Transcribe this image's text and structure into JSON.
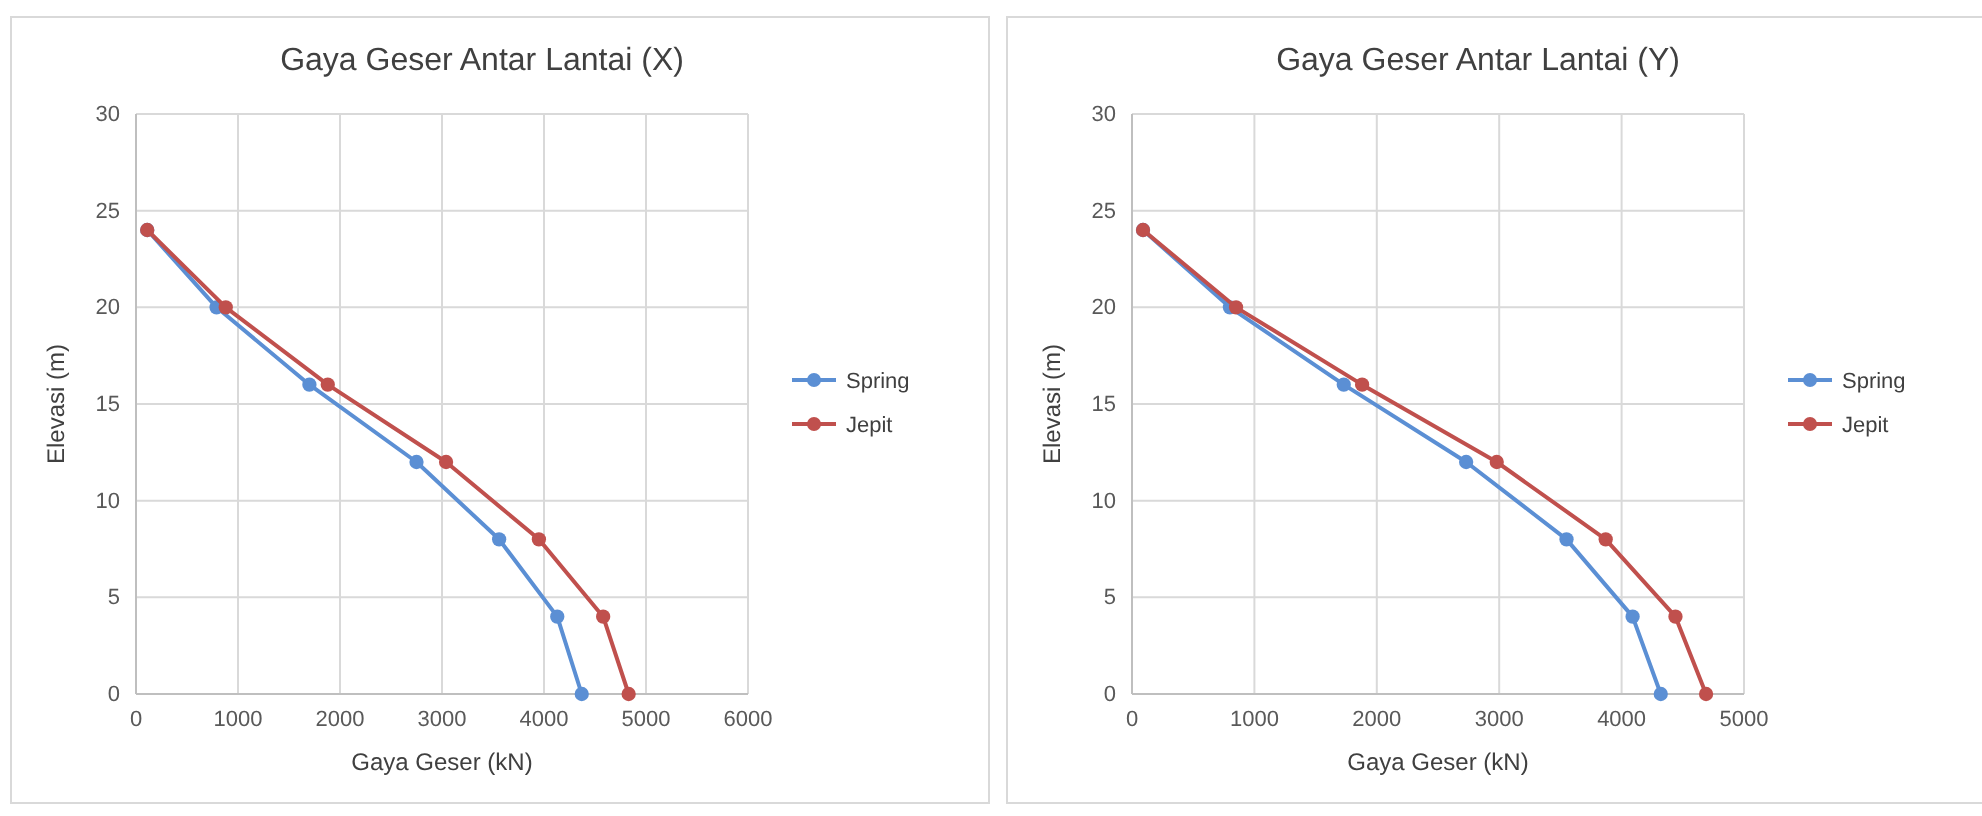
{
  "chart_data": [
    {
      "type": "line",
      "title": "Gaya Geser Antar Lantai (X)",
      "xlabel": "Gaya Geser (kN)",
      "ylabel": "Elevasi (m)",
      "xlim": [
        0,
        6000
      ],
      "xticks": [
        0,
        1000,
        2000,
        3000,
        4000,
        5000,
        6000
      ],
      "ylim": [
        0,
        30
      ],
      "yticks": [
        0,
        5,
        10,
        15,
        20,
        25,
        30
      ],
      "grid": true,
      "legend": "right",
      "marker": "circle",
      "line_style": "solid",
      "series": [
        {
          "name": "Spring",
          "color": "#5b8fd4",
          "x": [
            4370,
            4130,
            3560,
            2750,
            1700,
            790,
            110
          ],
          "values": [
            0,
            4,
            8,
            12,
            16,
            20,
            24
          ]
        },
        {
          "name": "Jepit",
          "color": "#c0504d",
          "x": [
            4830,
            4580,
            3950,
            3040,
            1880,
            880,
            110
          ],
          "values": [
            0,
            4,
            8,
            12,
            16,
            20,
            24
          ]
        }
      ]
    },
    {
      "type": "line",
      "title": "Gaya Geser Antar Lantai (Y)",
      "xlabel": "Gaya Geser (kN)",
      "ylabel": "Elevasi (m)",
      "xlim": [
        0,
        5000
      ],
      "xticks": [
        0,
        1000,
        2000,
        3000,
        4000,
        5000
      ],
      "ylim": [
        0,
        30
      ],
      "yticks": [
        0,
        5,
        10,
        15,
        20,
        25,
        30
      ],
      "grid": true,
      "legend": "right",
      "marker": "circle",
      "line_style": "solid",
      "series": [
        {
          "name": "Spring",
          "color": "#5b8fd4",
          "x": [
            4320,
            4090,
            3550,
            2730,
            1730,
            800,
            90
          ],
          "values": [
            0,
            4,
            8,
            12,
            16,
            20,
            24
          ]
        },
        {
          "name": "Jepit",
          "color": "#c0504d",
          "x": [
            4690,
            4440,
            3870,
            2980,
            1880,
            850,
            90
          ],
          "values": [
            0,
            4,
            8,
            12,
            16,
            20,
            24
          ]
        }
      ]
    }
  ]
}
